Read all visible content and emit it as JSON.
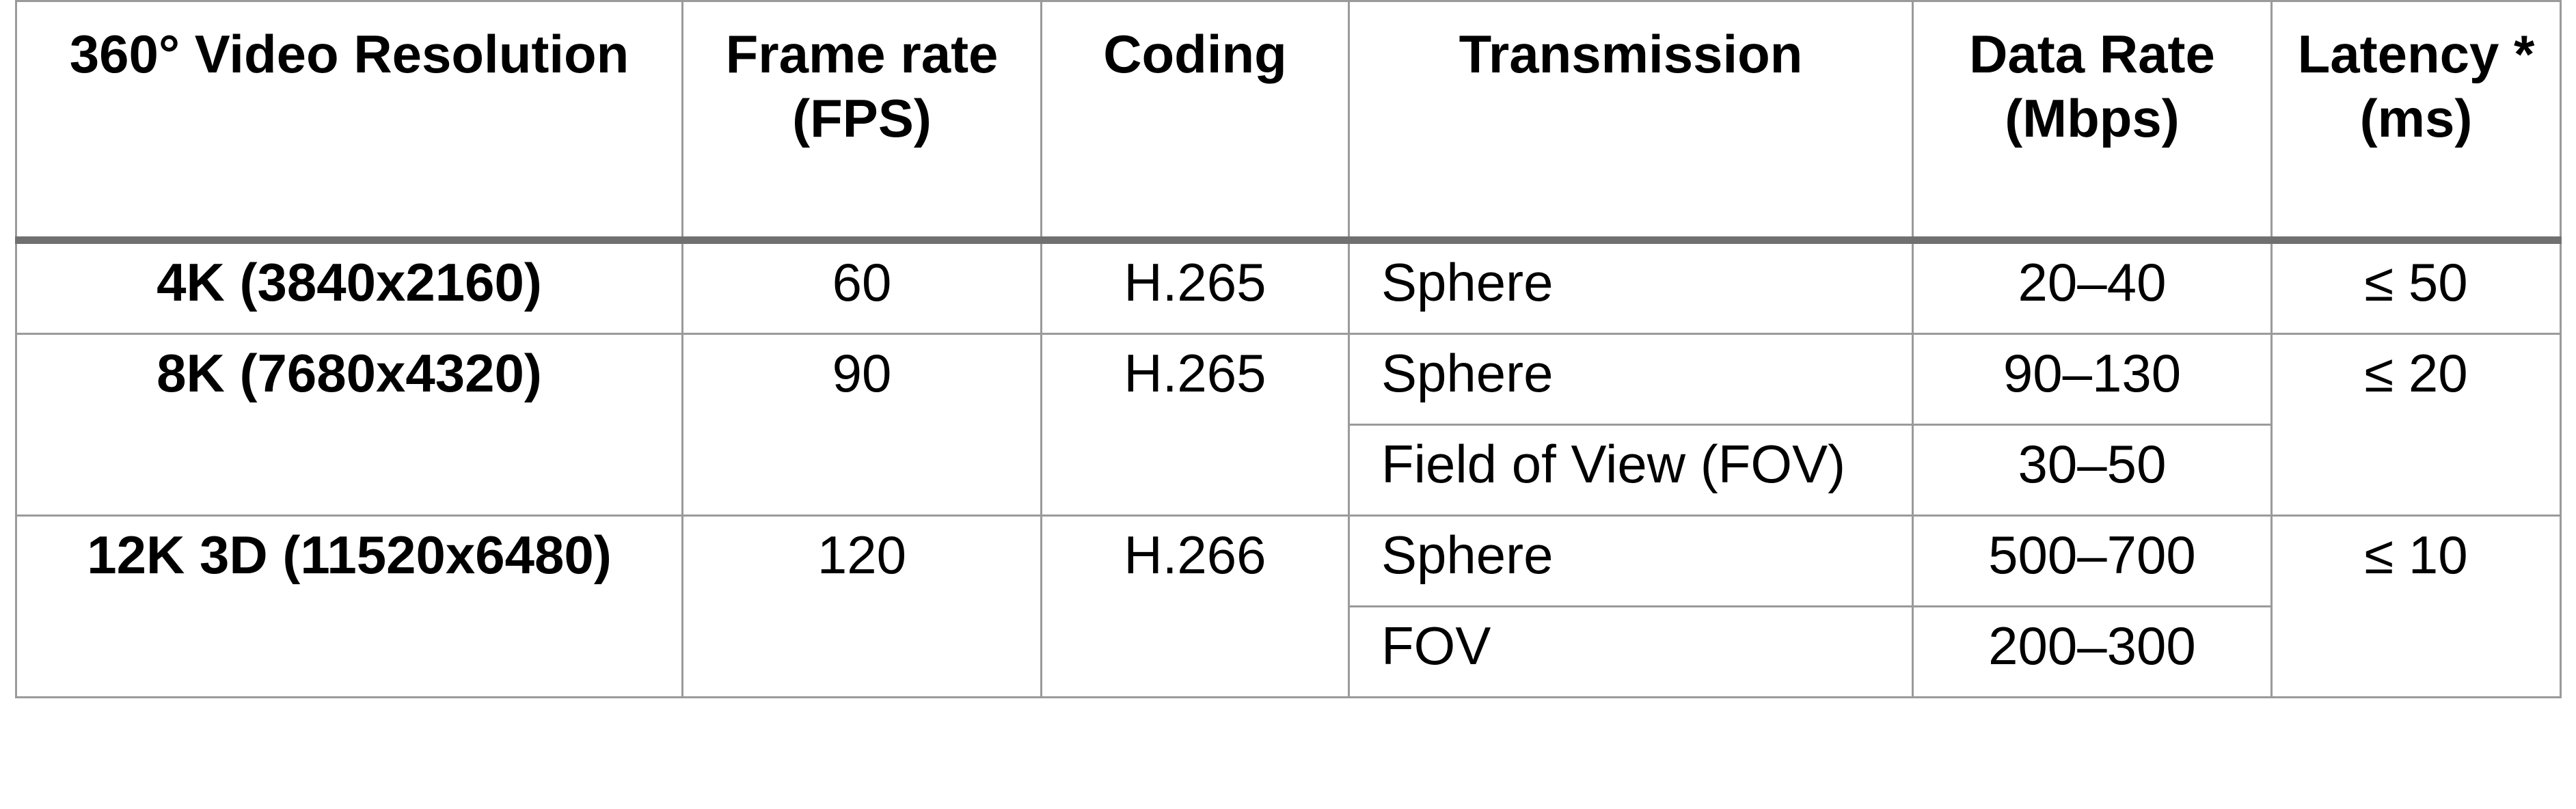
{
  "table": {
    "headers": [
      "360° Video Resolution",
      "Frame rate (FPS)",
      "Coding",
      "Transmission",
      "Data Rate (Mbps)",
      "Latency * (ms)"
    ],
    "rows": [
      {
        "resolution": "4K (3840x2160)",
        "frame_rate": "60",
        "coding": "H.265",
        "transmissions": [
          {
            "mode": "Sphere",
            "data_rate": "20–40"
          }
        ],
        "latency": "≤ 50"
      },
      {
        "resolution": "8K (7680x4320)",
        "frame_rate": "90",
        "coding": "H.265",
        "transmissions": [
          {
            "mode": "Sphere",
            "data_rate": "90–130"
          },
          {
            "mode": "Field of View (FOV)",
            "data_rate": "30–50"
          }
        ],
        "latency": "≤ 20"
      },
      {
        "resolution": "12K 3D (11520x6480)",
        "frame_rate": "120",
        "coding": "H.266",
        "transmissions": [
          {
            "mode": "Sphere",
            "data_rate": "500–700"
          },
          {
            "mode": "FOV",
            "data_rate": "200–300"
          }
        ],
        "latency": "≤ 10"
      }
    ]
  }
}
